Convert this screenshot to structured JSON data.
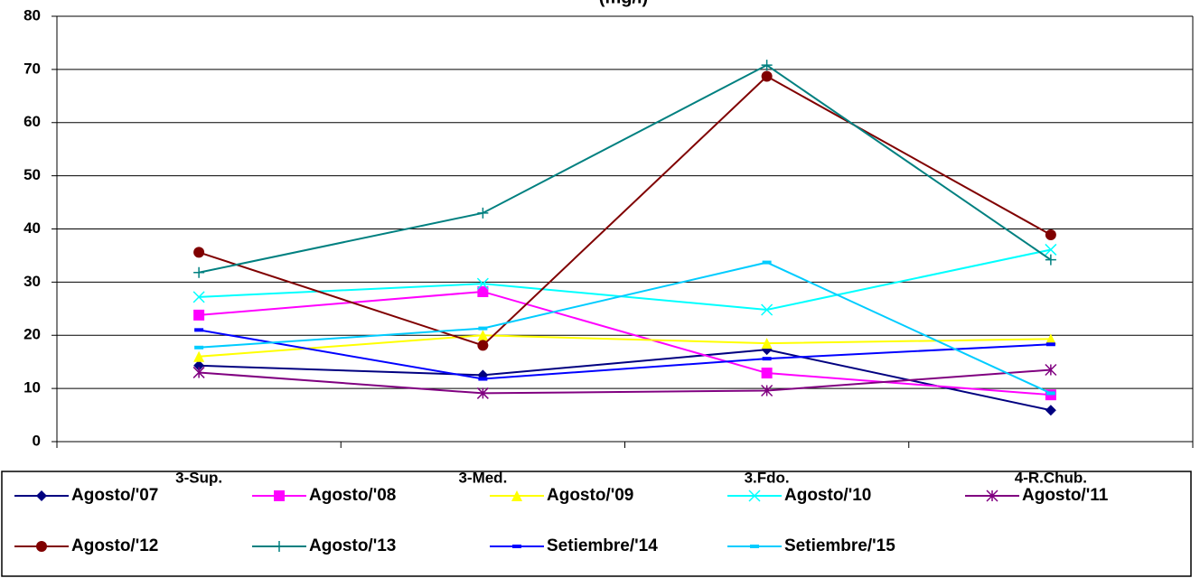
{
  "chart_data": {
    "type": "line",
    "title": "(mg/l)",
    "categories": [
      "3-Sup.",
      "3-Med.",
      "3.Fdo.",
      "4-R.Chub."
    ],
    "ylim": [
      0,
      80
    ],
    "yticks": [
      0,
      10,
      20,
      30,
      40,
      50,
      60,
      70,
      80
    ],
    "grid": true,
    "series": [
      {
        "name": "Agosto/'07",
        "color": "#000080",
        "marker": "diamond",
        "values": [
          14.3,
          12.5,
          17.3,
          5.9
        ]
      },
      {
        "name": "Agosto/'08",
        "color": "#ff00ff",
        "marker": "square",
        "values": [
          23.8,
          28.2,
          12.9,
          8.8
        ]
      },
      {
        "name": "Agosto/'09",
        "color": "#ffff00",
        "marker": "triangle",
        "values": [
          16,
          20,
          18.5,
          19.3
        ]
      },
      {
        "name": "Agosto/'10",
        "color": "#00ffff",
        "marker": "x",
        "values": [
          27.2,
          29.7,
          24.8,
          36.1
        ]
      },
      {
        "name": "Agosto/'11",
        "color": "#800080",
        "marker": "star",
        "values": [
          13,
          9.1,
          9.6,
          13.5
        ]
      },
      {
        "name": "Agosto/'12",
        "color": "#800000",
        "marker": "circle",
        "values": [
          35.6,
          18.1,
          68.7,
          38.9
        ]
      },
      {
        "name": "Agosto/'13",
        "color": "#008080",
        "marker": "plus",
        "values": [
          31.8,
          43,
          70.8,
          34.2
        ]
      },
      {
        "name": "Setiembre/'14",
        "color": "#0000ff",
        "marker": "dash",
        "values": [
          21,
          11.8,
          15.6,
          18.3
        ]
      },
      {
        "name": "Setiembre/'15",
        "color": "#00ccff",
        "marker": "dash",
        "values": [
          17.7,
          21.3,
          33.7,
          9.1
        ]
      }
    ]
  }
}
